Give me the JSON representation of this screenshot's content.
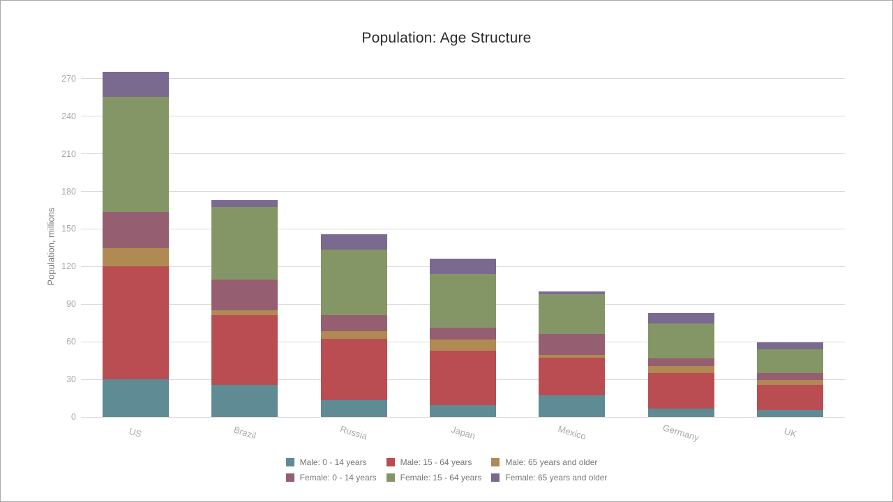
{
  "window": {
    "background": "#ffffff",
    "border_color": "#a9a9a9"
  },
  "chart_data": {
    "type": "bar",
    "stacked": true,
    "title": "Population: Age Structure",
    "ylabel": "Population, millions",
    "xlabel": "",
    "categories": [
      "US",
      "Brazil",
      "Russia",
      "Japan",
      "Mexico",
      "Germany",
      "UK"
    ],
    "series": [
      {
        "name": "Male: 0 - 14 years",
        "color": "#5f8b95",
        "values": [
          29.956,
          25.607,
          13.493,
          9.575,
          17.306,
          6.679,
          5.816
        ]
      },
      {
        "name": "Male: 15 - 64 years",
        "color": "#ba4d51",
        "values": [
          90.354,
          55.793,
          48.983,
          43.363,
          30.223,
          28.638,
          19.622
        ]
      },
      {
        "name": "Male: 65 years and older",
        "color": "#af8a53",
        "values": [
          14.472,
          3.727,
          5.802,
          9.024,
          1.927,
          5.133,
          3.864
        ]
      },
      {
        "name": "Female: 0 - 14 years",
        "color": "#955f71",
        "values": [
          28.597,
          24.67,
          12.971,
          9.105,
          16.632,
          6.333,
          5.519
        ]
      },
      {
        "name": "Female: 15 - 64 years",
        "color": "#859666",
        "values": [
          91.827,
          57.598,
          52.14,
          42.98,
          31.868,
          27.693,
          19.228
        ]
      },
      {
        "name": "Female: 65 years and older",
        "color": "#7b6a90",
        "values": [
          20.362,
          5.462,
          12.61,
          12.501,
          2.391,
          8.318,
          5.459
        ]
      }
    ],
    "y_ticks": [
      0,
      30,
      60,
      90,
      120,
      150,
      180,
      210,
      240,
      270
    ],
    "ylim": [
      0,
      285
    ],
    "grid": true,
    "legend_position": "bottom-center"
  },
  "style_colors": {
    "grid": "#d9d9d9",
    "tick_label": "#a9a9a9",
    "category_label": "#a9a9a9",
    "axis_title": "#767676",
    "legend_text": "#767676",
    "title_text": "#2b2b2b"
  }
}
